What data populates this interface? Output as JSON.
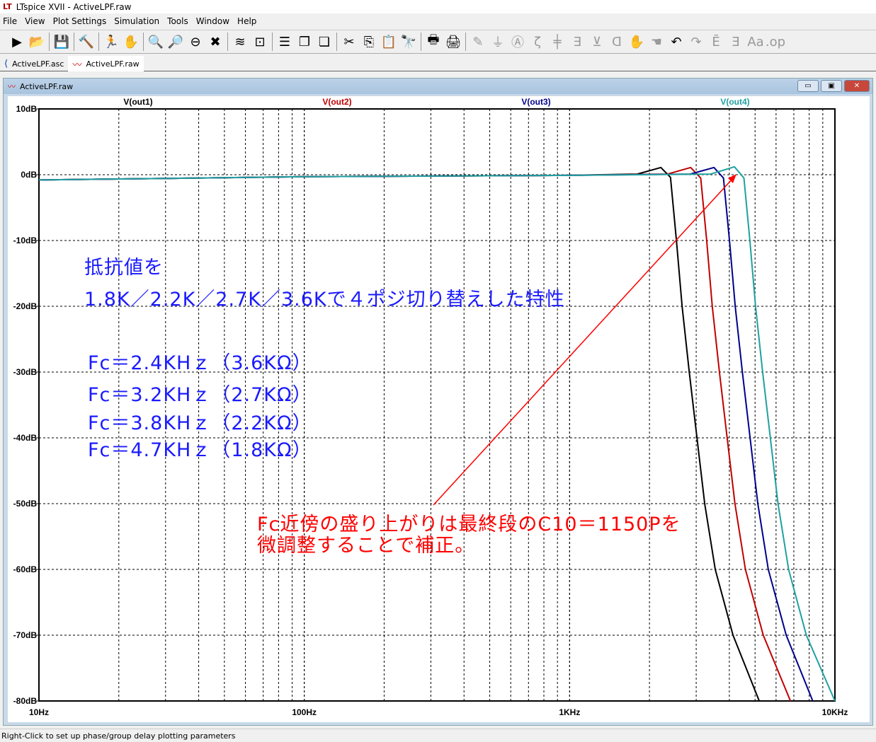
{
  "window": {
    "title": "LTspice XVII - ActiveLPF.raw",
    "logo": "LT"
  },
  "menu": [
    "File",
    "View",
    "Plot Settings",
    "Simulation",
    "Tools",
    "Window",
    "Help"
  ],
  "toolbar": [
    {
      "icon": "run-icon",
      "g": "▶"
    },
    {
      "icon": "open-icon",
      "g": "📂"
    },
    "sep",
    {
      "icon": "save-icon",
      "g": "💾"
    },
    "sep",
    {
      "icon": "control-panel-icon",
      "g": "🔨"
    },
    "sep",
    {
      "icon": "halt-icon",
      "g": "🏃"
    },
    {
      "icon": "pan-hand-icon",
      "g": "✋",
      "dis": true
    },
    "sep",
    {
      "icon": "zoom-in-icon",
      "g": "🔍"
    },
    {
      "icon": "zoom-full-icon",
      "g": "🔎"
    },
    {
      "icon": "zoom-out-icon",
      "g": "⊖"
    },
    {
      "icon": "zoom-cancel-icon",
      "g": "✖"
    },
    "sep",
    {
      "icon": "autorange-icon",
      "g": "≋"
    },
    {
      "icon": "add-trace-icon",
      "g": "⊡"
    },
    "sep",
    {
      "icon": "tile-horizontal-icon",
      "g": "☰"
    },
    {
      "icon": "cascade-icon",
      "g": "❐"
    },
    {
      "icon": "tile-vertical-icon",
      "g": "❏"
    },
    "sep",
    {
      "icon": "cut-icon",
      "g": "✂"
    },
    {
      "icon": "copy-icon",
      "g": "⎘"
    },
    {
      "icon": "paste-icon",
      "g": "📋",
      "dis": true
    },
    {
      "icon": "find-icon",
      "g": "🔭"
    },
    "sep",
    {
      "icon": "print-icon",
      "g": "🖶"
    },
    {
      "icon": "print-setup-icon",
      "g": "🖨"
    },
    "sep",
    {
      "icon": "wire-icon",
      "g": "✎",
      "dis": true
    },
    {
      "icon": "ground-icon",
      "g": "⏚",
      "dis": true
    },
    {
      "icon": "label-icon",
      "g": "Ⓐ",
      "dis": true
    },
    {
      "icon": "resistor-icon",
      "g": "ζ",
      "dis": true
    },
    {
      "icon": "capacitor-icon",
      "g": "╪",
      "dis": true
    },
    {
      "icon": "inductor-icon",
      "g": "∃",
      "dis": true
    },
    {
      "icon": "diode-icon",
      "g": "⊻",
      "dis": true
    },
    {
      "icon": "component-icon",
      "g": "ᗡ",
      "dis": true
    },
    {
      "icon": "move-icon",
      "g": "✋",
      "dis": true
    },
    {
      "icon": "drag-icon",
      "g": "☚",
      "dis": true
    },
    {
      "icon": "undo-icon",
      "g": "↶"
    },
    {
      "icon": "redo-icon",
      "g": "↷",
      "dis": true
    },
    {
      "icon": "rotate-icon",
      "g": "Ē",
      "dis": true
    },
    {
      "icon": "mirror-icon",
      "g": "Ǝ",
      "dis": true
    },
    {
      "icon": "text-icon",
      "g": "Aa",
      "dis": true
    },
    {
      "icon": "spice-directive-icon",
      "g": ".op",
      "dis": true
    }
  ],
  "tabs": [
    {
      "label": "ActiveLPF.asc",
      "active": false
    },
    {
      "label": "ActiveLPF.raw",
      "active": true
    }
  ],
  "plot_window": {
    "title": "ActiveLPF.raw"
  },
  "status": "Right-Click to set up phase/group delay plotting parameters",
  "annotations": {
    "line1": "抵抗値を",
    "line2": "1.8K／2.2K／2.7K／3.6Kで４ポジ切り替えした特性",
    "fc": [
      "Fc＝2.4KHｚ（3.6KΩ）",
      "Fc＝3.2KHｚ（2.7KΩ）",
      "Fc＝3.8KHｚ（2.2KΩ）",
      "Fc＝4.7KHｚ（1.8KΩ）"
    ],
    "note1": "Fc近傍の盛り上がりは最終段のC10＝1150Pを",
    "note2": "微調整することで補正。",
    "note_color": "#ff0000",
    "text_color": "#1a1aff"
  },
  "chart_data": {
    "type": "line",
    "xscale": "log",
    "xlim": [
      10,
      10000
    ],
    "ylim": [
      -80,
      10
    ],
    "grid": true,
    "xticks": [
      "10Hz",
      "100Hz",
      "1KHz",
      "10KHz"
    ],
    "yticks": [
      "10dB",
      "0dB",
      "-10dB",
      "-20dB",
      "-30dB",
      "-40dB",
      "-50dB",
      "-60dB",
      "-70dB",
      "-80dB"
    ],
    "series": [
      {
        "name": "V(out1)",
        "color": "#000000",
        "points": [
          [
            10,
            -0.8
          ],
          [
            100,
            -0.3
          ],
          [
            1000,
            -0.1
          ],
          [
            1800,
            0.1
          ],
          [
            2208,
            1.1
          ],
          [
            2400,
            -0.4
          ],
          [
            2527,
            -10
          ],
          [
            2655,
            -20
          ],
          [
            2825,
            -30
          ],
          [
            3020,
            -40
          ],
          [
            3230,
            -50
          ],
          [
            3540,
            -60
          ],
          [
            4130,
            -70
          ],
          [
            5185,
            -80
          ]
        ]
      },
      {
        "name": "V(out2)",
        "color": "#c00000",
        "points": [
          [
            10,
            -0.8
          ],
          [
            100,
            -0.3
          ],
          [
            1000,
            -0.1
          ],
          [
            2340,
            0.1
          ],
          [
            2860,
            1.1
          ],
          [
            3120,
            -0.5
          ],
          [
            3285,
            -10
          ],
          [
            3450,
            -20
          ],
          [
            3670,
            -30
          ],
          [
            3925,
            -40
          ],
          [
            4200,
            -50
          ],
          [
            4600,
            -60
          ],
          [
            5370,
            -70
          ],
          [
            6800,
            -80
          ]
        ]
      },
      {
        "name": "V(out3)",
        "color": "#00008b",
        "points": [
          [
            10,
            -0.8
          ],
          [
            100,
            -0.3
          ],
          [
            1000,
            -0.1
          ],
          [
            2850,
            0.1
          ],
          [
            3500,
            1.1
          ],
          [
            3800,
            -0.5
          ],
          [
            4005,
            -10
          ],
          [
            4210,
            -20
          ],
          [
            4480,
            -30
          ],
          [
            4790,
            -40
          ],
          [
            5120,
            -50
          ],
          [
            5610,
            -60
          ],
          [
            6550,
            -70
          ],
          [
            8250,
            -80
          ]
        ]
      },
      {
        "name": "V(out4)",
        "color": "#20a0a0",
        "points": [
          [
            10,
            -0.8
          ],
          [
            100,
            -0.3
          ],
          [
            1000,
            -0.1
          ],
          [
            3400,
            0.1
          ],
          [
            4180,
            1.2
          ],
          [
            4540,
            -0.5
          ],
          [
            4780,
            -10
          ],
          [
            5020,
            -20
          ],
          [
            5340,
            -30
          ],
          [
            5710,
            -40
          ],
          [
            6100,
            -50
          ],
          [
            6690,
            -60
          ],
          [
            7800,
            -70
          ],
          [
            10000,
            -80
          ]
        ]
      }
    ]
  }
}
